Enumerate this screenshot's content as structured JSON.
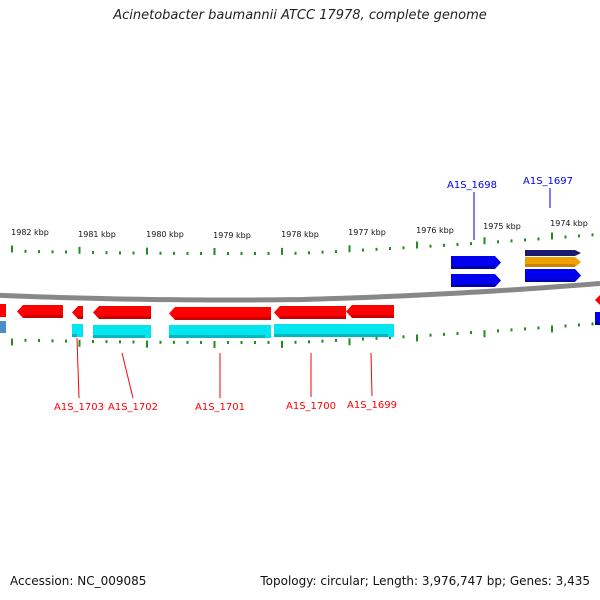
{
  "title": "Acinetobacter baumannii ATCC 17978, complete genome",
  "accession": "Accession: NC_009085",
  "summary": "Topology: circular; Length: 3,976,747 bp; Genes: 3,435",
  "colors": {
    "reverse_gene": "#ff0000",
    "reverse_shadow": "#aa0000",
    "reverse_feature": "#00e5ee",
    "forward_gene": "#0000ee",
    "forward_shadow": "#000088",
    "forward_navy": "#1a1a6e",
    "forward_orange": "#f0a000",
    "backbone": "#888888",
    "tick": "#228b22"
  },
  "kbp_labels": [
    {
      "label": "1982 kbp"
    },
    {
      "label": "1981 kbp"
    },
    {
      "label": "1980 kbp"
    },
    {
      "label": "1979 kbp"
    },
    {
      "label": "1978 kbp"
    },
    {
      "label": "1977 kbp"
    },
    {
      "label": "1976 kbp"
    },
    {
      "label": "1975 kbp"
    },
    {
      "label": "1974 kbp"
    }
  ],
  "genes_forward": [
    {
      "id": "A1S_1698"
    },
    {
      "id": "A1S_1697"
    }
  ],
  "genes_reverse": [
    {
      "id": "A1S_1703"
    },
    {
      "id": "A1S_1702"
    },
    {
      "id": "A1S_1701"
    },
    {
      "id": "A1S_1700"
    },
    {
      "id": "A1S_1699"
    }
  ]
}
